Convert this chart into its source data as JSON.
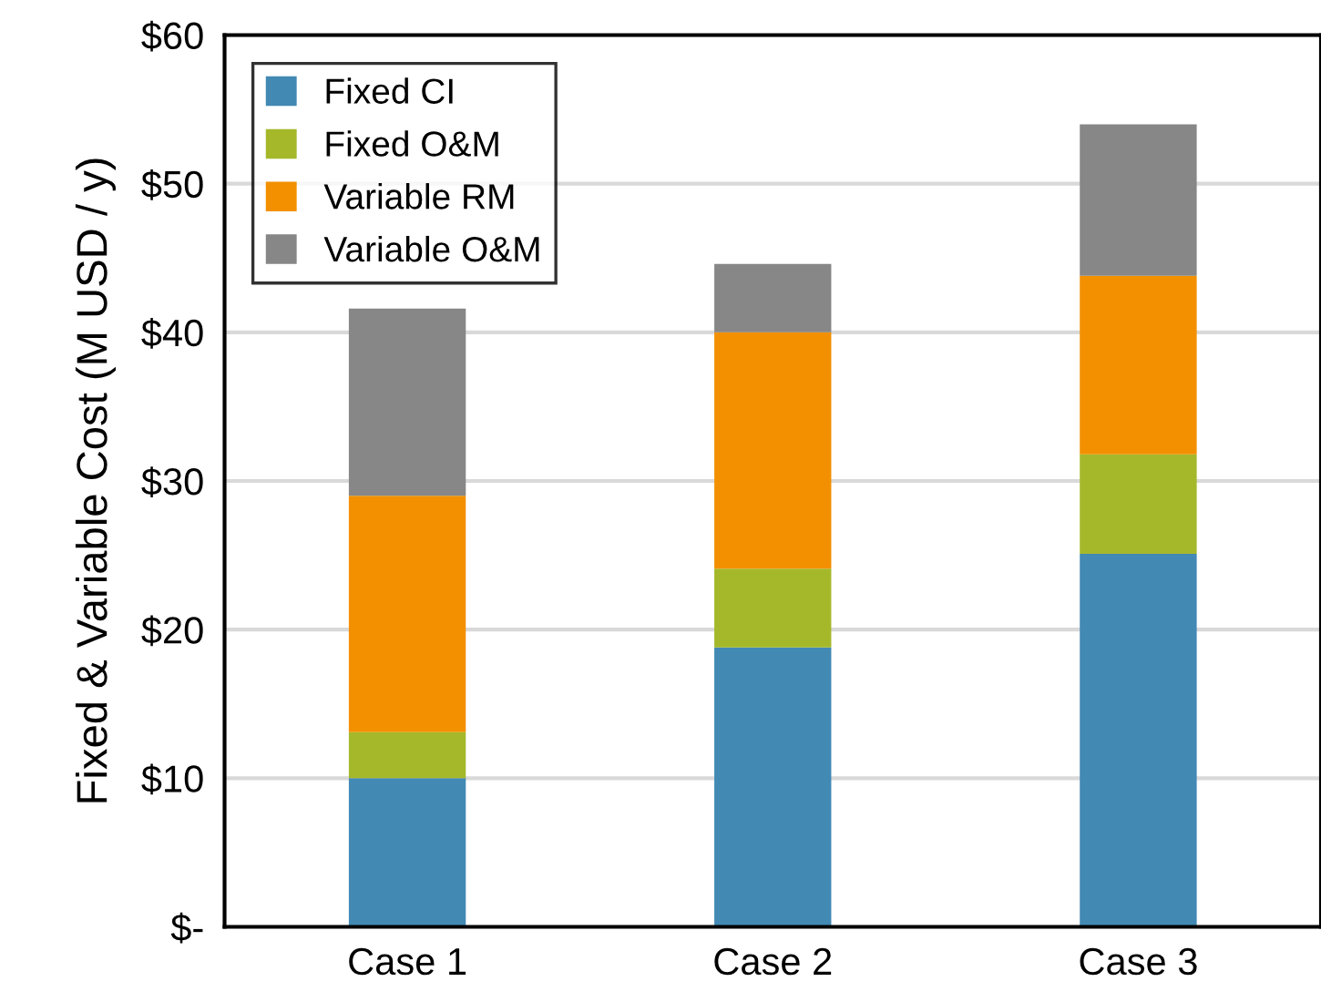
{
  "chart_data": {
    "type": "bar",
    "stacked": true,
    "ylabel": "Fixed & Variable Cost (M USD / y)",
    "categories": [
      "Case 1",
      "Case 2",
      "Case 3"
    ],
    "series": [
      {
        "name": "Fixed CI",
        "color": "#4289b4",
        "values": [
          10.0,
          18.8,
          25.1
        ]
      },
      {
        "name": "Fixed O&M",
        "color": "#a5b82a",
        "values": [
          3.1,
          5.3,
          6.7
        ]
      },
      {
        "name": "Variable RM",
        "color": "#f39000",
        "values": [
          15.9,
          15.9,
          12.0
        ]
      },
      {
        "name": "Variable O&M",
        "color": "#878787",
        "values": [
          12.6,
          4.6,
          10.2
        ]
      }
    ],
    "ylim": [
      0,
      60
    ],
    "yticks": [
      {
        "value": 0,
        "label": "$-"
      },
      {
        "value": 10,
        "label": "$10"
      },
      {
        "value": 20,
        "label": "$20"
      },
      {
        "value": 30,
        "label": "$30"
      },
      {
        "value": 40,
        "label": "$40"
      },
      {
        "value": 50,
        "label": "$50"
      },
      {
        "value": 60,
        "label": "$60"
      }
    ],
    "grid": "y",
    "legend": "top left"
  }
}
